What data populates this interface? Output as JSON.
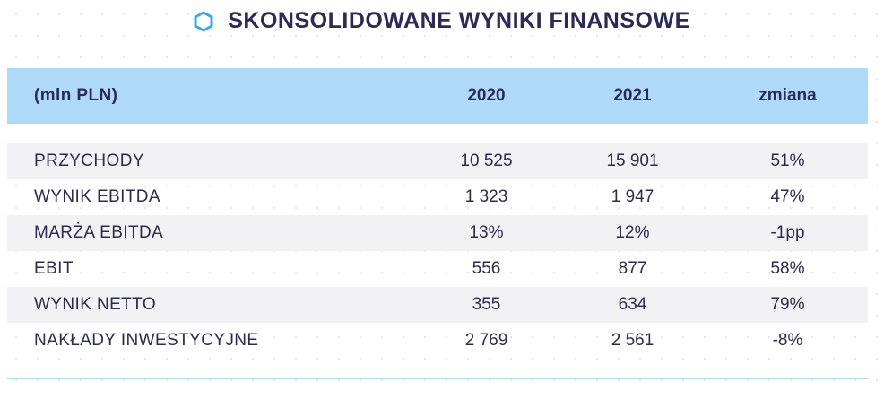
{
  "title": "SKONSOLIDOWANE WYNIKI FINANSOWE",
  "icon": "hexagon-icon",
  "accent_color": "#aedaf7",
  "hexagon_color": "#3aa8e8",
  "table": {
    "columns": [
      "(mln PLN)",
      "2020",
      "2021",
      "zmiana"
    ],
    "rows": [
      {
        "label": "PRZYCHODY",
        "y2020": "10 525",
        "y2021": "15 901",
        "change": "51%"
      },
      {
        "label": "WYNIK EBITDA",
        "y2020": "1 323",
        "y2021": "1 947",
        "change": "47%"
      },
      {
        "label": "MARŻA EBITDA",
        "y2020": "13%",
        "y2021": "12%",
        "change": "-1pp"
      },
      {
        "label": "EBIT",
        "y2020": "556",
        "y2021": "877",
        "change": "58%"
      },
      {
        "label": "WYNIK NETTO",
        "y2020": "355",
        "y2021": "634",
        "change": "79%"
      },
      {
        "label": "NAKŁADY INWESTYCYJNE",
        "y2020": "2 769",
        "y2021": "2 561",
        "change": "-8%"
      }
    ]
  }
}
